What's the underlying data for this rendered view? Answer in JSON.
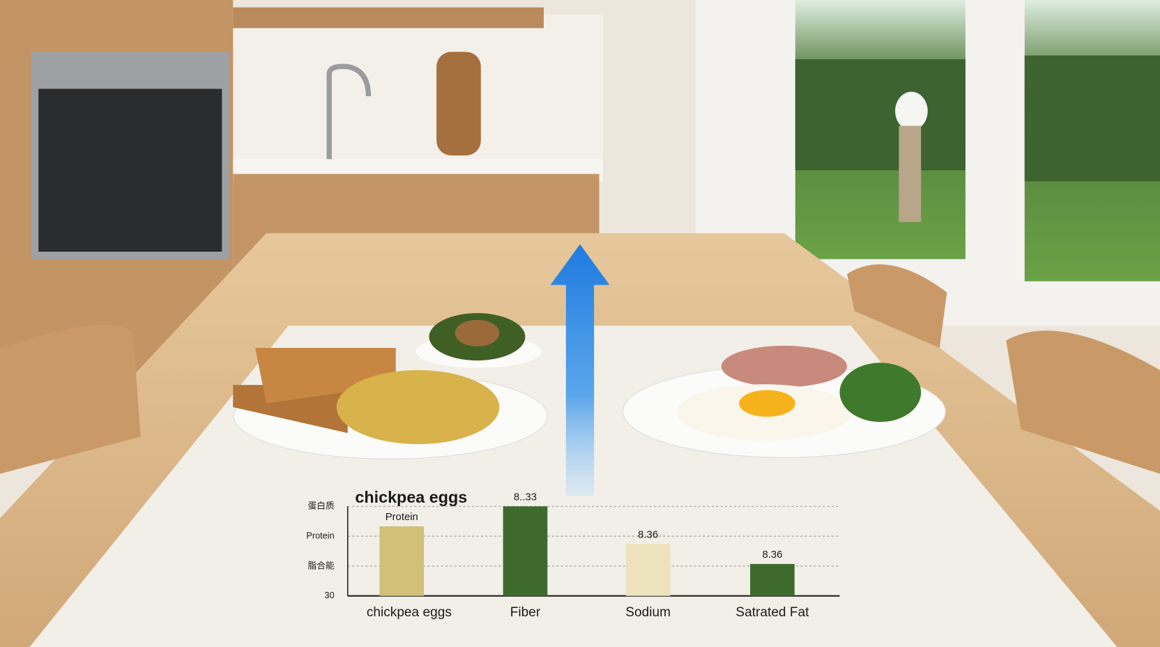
{
  "chart_data": {
    "type": "bar",
    "title": "chickpea eggs",
    "categories": [
      "chickpea eggs",
      "Fiber",
      "Sodium",
      "Satrated Fat"
    ],
    "values": [
      32.33,
      33.0,
      31.74,
      31.07
    ],
    "colors": [
      "#d3c079",
      "#3f6a2d",
      "#ece2bc",
      "#3f6a2d"
    ],
    "bar_labels": [
      "Protein",
      "8..33",
      "8.36",
      "8.36"
    ],
    "ylim": [
      30,
      33
    ],
    "yticks": [
      30,
      {
        "value": 31,
        "label": "脂合能"
      },
      {
        "value": 32,
        "label": "Protein"
      },
      {
        "value": 33,
        "label": "蛋白质"
      }
    ],
    "grid": true
  }
}
